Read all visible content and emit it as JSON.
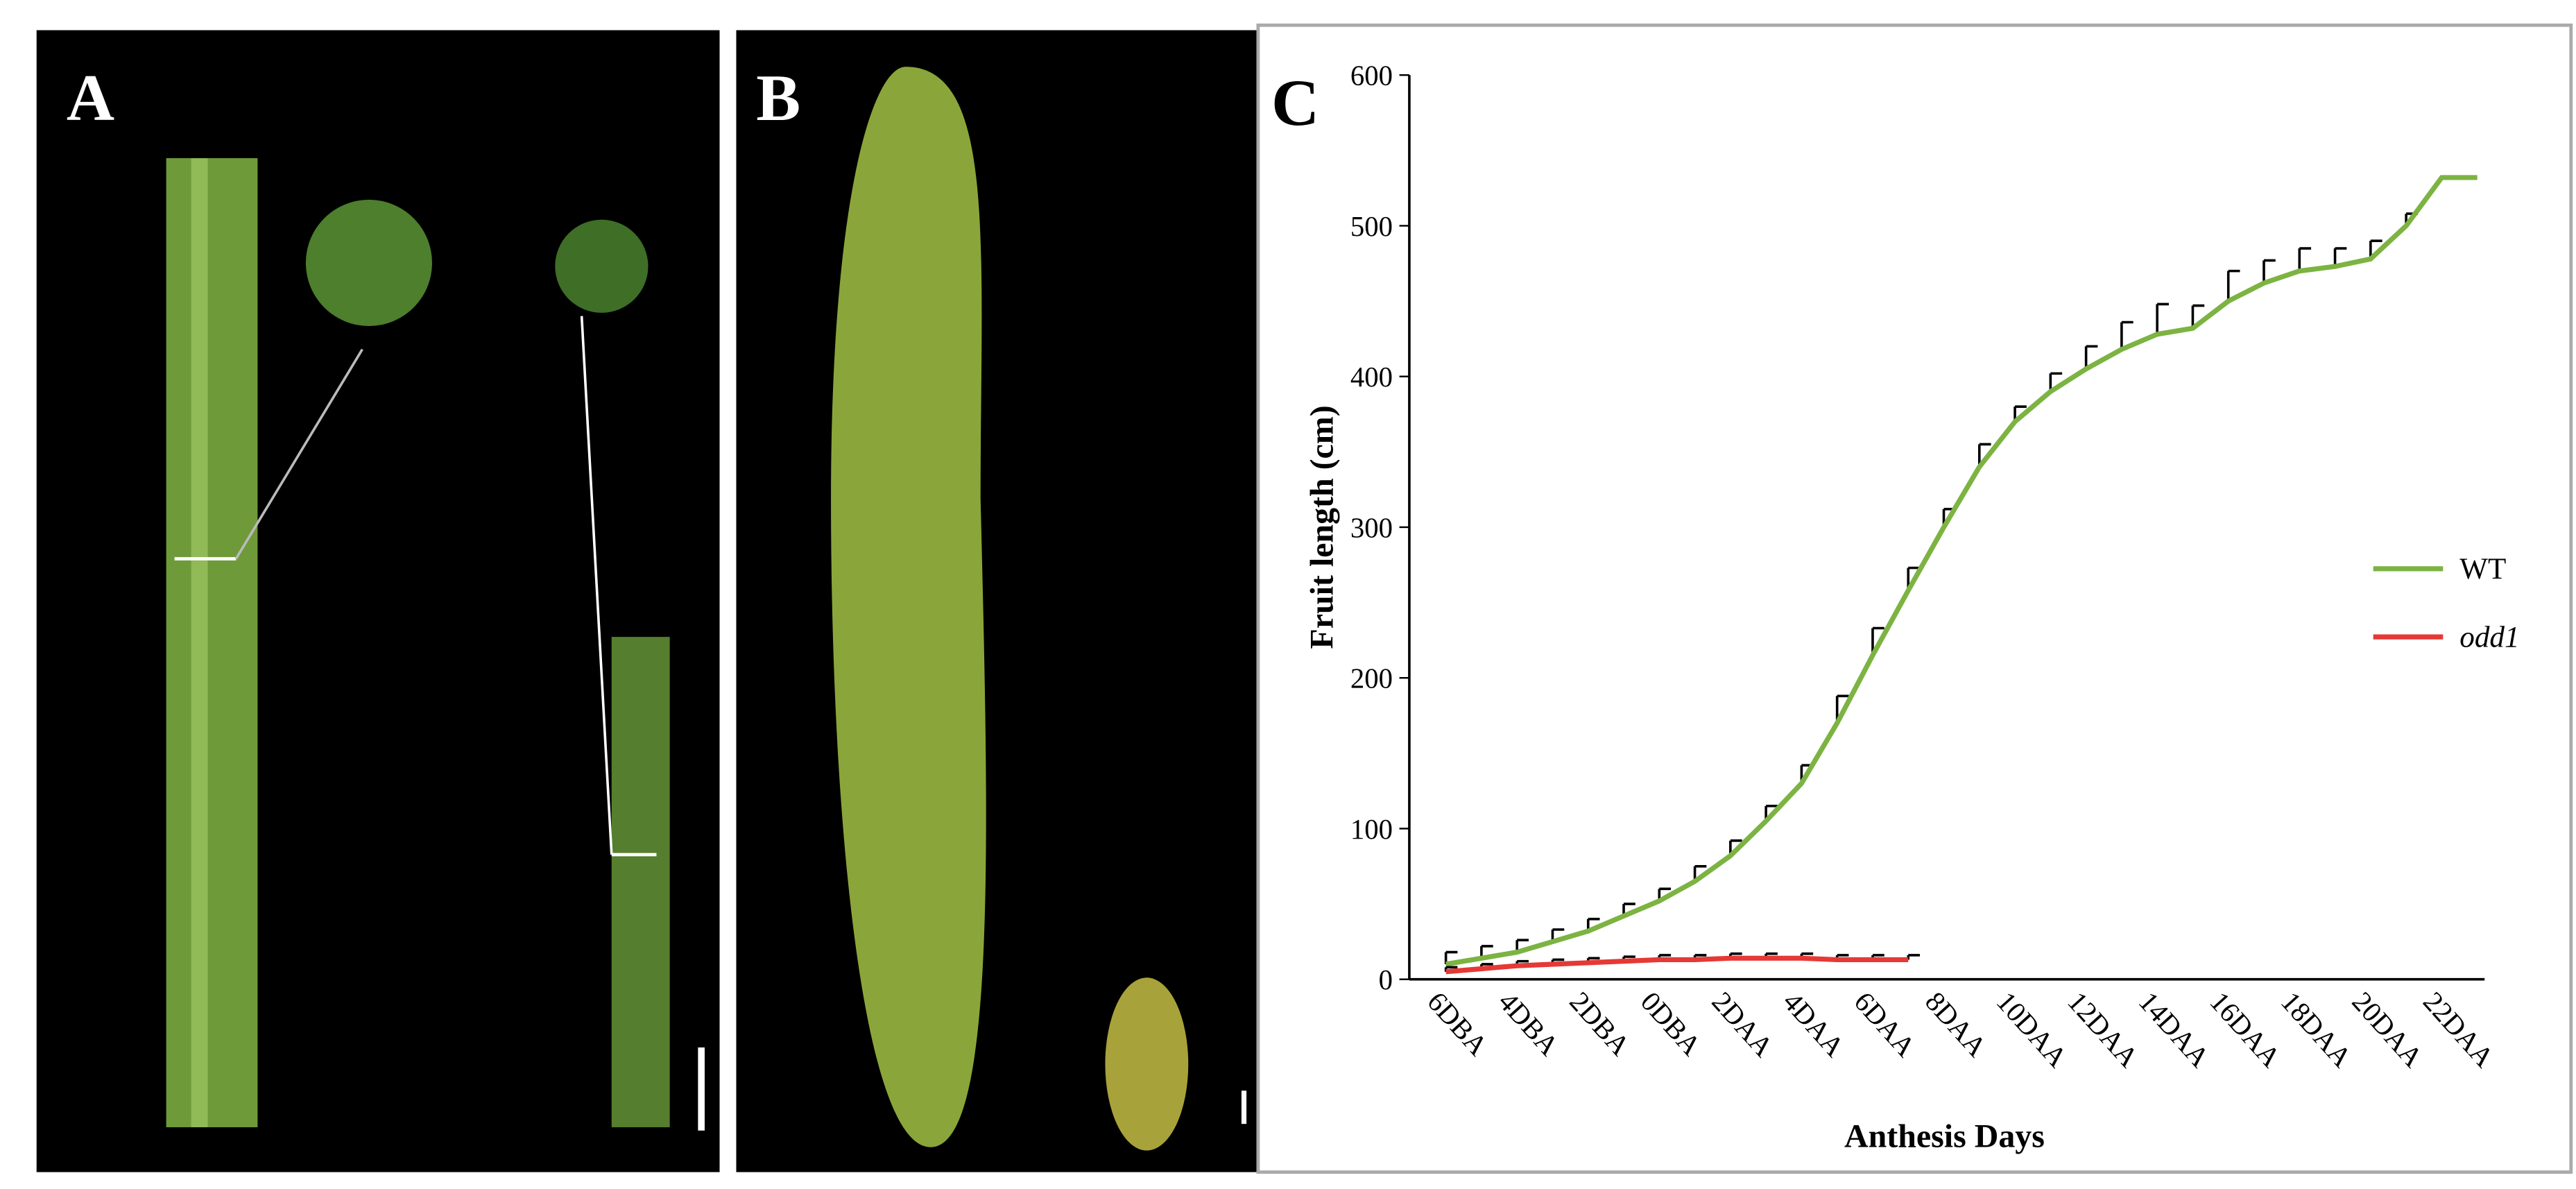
{
  "panels": [
    "A",
    "B"
  ],
  "chart_data": {
    "type": "line",
    "panel": "C",
    "xlabel": "Anthesis Days",
    "ylabel": "Fruit length (cm)",
    "categories": [
      "6DBA",
      null,
      "4DBA",
      null,
      "2DBA",
      null,
      "0DBA",
      null,
      "2DAA",
      null,
      "4DAA",
      null,
      "6DAA",
      null,
      "8DAA",
      null,
      "10DAA",
      null,
      "12DAA",
      null,
      "14DAA",
      null,
      "16DAA",
      null,
      "18DAA",
      null,
      "20DAA",
      null,
      "22DAA",
      null
    ],
    "series": [
      {
        "name": "WT",
        "color": "#7cb342",
        "values": [
          10,
          14,
          18,
          25,
          32,
          42,
          52,
          65,
          82,
          105,
          130,
          170,
          215,
          258,
          300,
          340,
          370,
          390,
          405,
          418,
          428,
          432,
          450,
          462,
          470,
          473,
          478,
          500,
          532,
          532
        ],
        "errors": [
          8,
          8,
          8,
          8,
          8,
          8,
          8,
          10,
          10,
          10,
          12,
          18,
          18,
          15,
          12,
          15,
          10,
          12,
          15,
          18,
          20,
          15,
          20,
          15,
          15,
          12,
          12,
          8,
          null,
          null
        ]
      },
      {
        "name": "odd1",
        "color": "#e53935",
        "values": [
          5,
          7,
          9,
          10,
          11,
          12,
          13,
          13,
          14,
          14,
          14,
          13,
          13,
          13,
          null,
          null,
          null,
          null,
          null,
          null,
          null,
          null,
          null,
          null,
          null,
          null,
          null,
          null,
          null,
          null
        ],
        "errors": [
          3,
          3,
          3,
          3,
          3,
          3,
          3,
          3,
          3,
          3,
          3,
          3,
          3,
          3,
          null,
          null,
          null,
          null,
          null,
          null,
          null,
          null,
          null,
          null,
          null,
          null,
          null,
          null,
          null,
          null
        ]
      }
    ],
    "ylim": [
      0,
      600
    ],
    "yticks": [
      0,
      100,
      200,
      300,
      400,
      500,
      600
    ]
  }
}
